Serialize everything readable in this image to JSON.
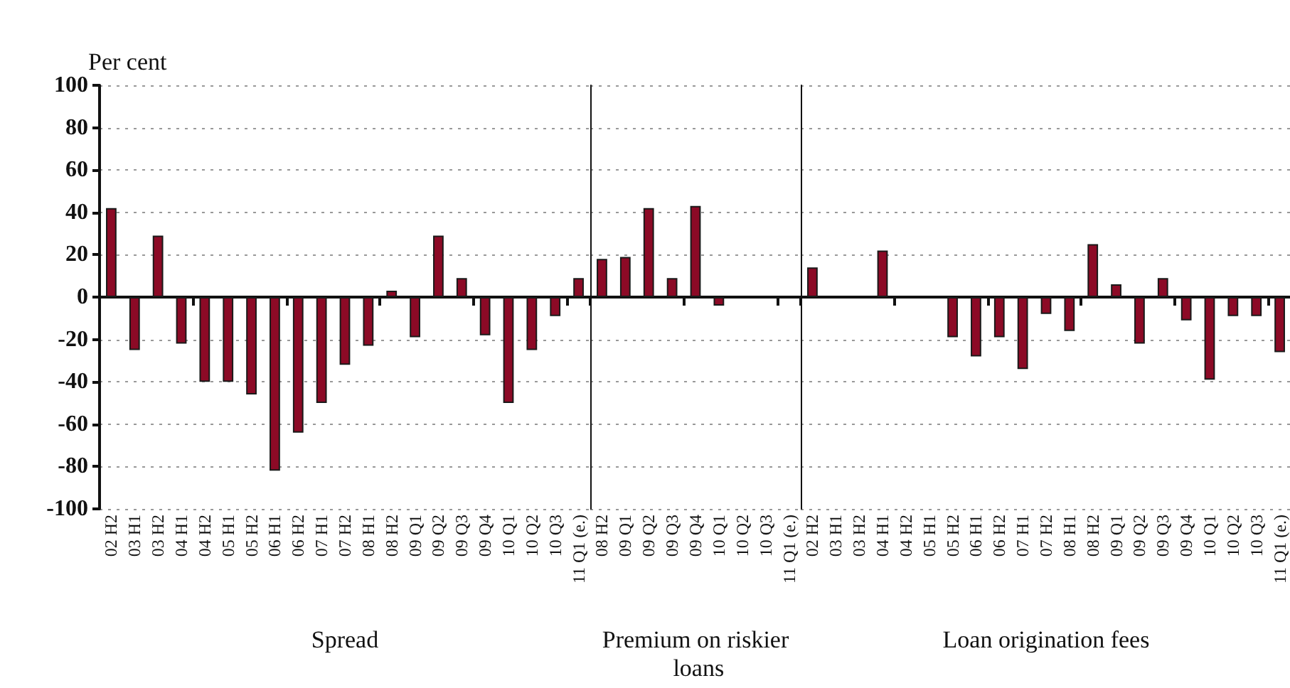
{
  "chart_data": [
    {
      "type": "bar",
      "ylabel": "Per cent",
      "xlabel": "Spread",
      "categories": [
        "02 H2",
        "03 H1",
        "03 H2",
        "04 H1",
        "04 H2",
        "05 H1",
        "05 H2",
        "06 H1",
        "06 H2",
        "07 H1",
        "07 H2",
        "08 H1",
        "08 H2",
        "09 Q1",
        "09 Q2",
        "09 Q3",
        "09 Q4",
        "10 Q1",
        "10 Q2",
        "10 Q3",
        "11 Q1 (e.)"
      ],
      "values": [
        42,
        -25,
        29,
        -22,
        -40,
        -40,
        -46,
        -82,
        -64,
        -50,
        -32,
        -23,
        3,
        -19,
        29,
        9,
        -18,
        -50,
        -25,
        -9,
        9
      ],
      "color": "#8c0a26",
      "ylim": [
        -100,
        100
      ],
      "yticks": [
        -100,
        -80,
        -60,
        -40,
        -20,
        0,
        20,
        40,
        60,
        80,
        100
      ],
      "grid": "y"
    },
    {
      "type": "bar",
      "xlabel": "Premium on riskier loans",
      "categories": [
        "08 H2",
        "09 Q1",
        "09 Q2",
        "09 Q3",
        "09 Q4",
        "10 Q1",
        "10 Q2",
        "10 Q3",
        "11 Q1 (e.)"
      ],
      "values": [
        18,
        19,
        42,
        9,
        43,
        -4,
        0,
        0,
        0
      ],
      "color": "#8c0a26",
      "ylim": [
        -100,
        100
      ],
      "yticks": [
        -100,
        -80,
        -60,
        -40,
        -20,
        0,
        20,
        40,
        60,
        80,
        100
      ],
      "grid": "y",
      "tick_labels": "x"
    },
    {
      "type": "bar",
      "xlabel": "Loan origination fees",
      "categories": [
        "02 H2",
        "03 H1",
        "03 H2",
        "04 H1",
        "04 H2",
        "05 H1",
        "05 H2",
        "06 H1",
        "06 H2",
        "07 H1",
        "07 H2",
        "08 H1",
        "08 H2",
        "09 Q1",
        "09 Q2",
        "09 Q3",
        "09 Q4",
        "10 Q1",
        "10 Q2",
        "10 Q3",
        "11 Q1 (e.)"
      ],
      "values": [
        14,
        0,
        0,
        22,
        0,
        0,
        -19,
        -28,
        -19,
        -34,
        -8,
        -16,
        25,
        6,
        -22,
        9,
        -11,
        -39,
        -9,
        -9,
        -26
      ],
      "color": "#8c0a26",
      "ylim": [
        -100,
        100
      ],
      "yticks": [
        -100,
        -80,
        -60,
        -40,
        -20,
        0,
        20,
        40,
        60,
        80,
        100
      ],
      "grid": "y",
      "tick_labels": "x"
    }
  ]
}
